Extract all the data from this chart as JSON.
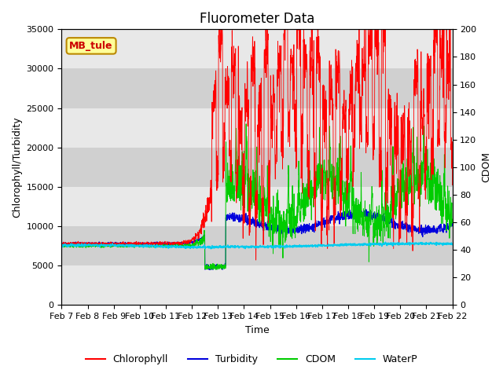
{
  "title": "Fluorometer Data",
  "xlabel": "Time",
  "ylabel_left": "Chlorophyll/Turbidity",
  "ylabel_right": "CDOM",
  "station_label": "MB_tule",
  "ylim_left": [
    0,
    35000
  ],
  "ylim_right": [
    0,
    200
  ],
  "yticks_left": [
    0,
    5000,
    10000,
    15000,
    20000,
    25000,
    30000,
    35000
  ],
  "yticks_right": [
    0,
    20,
    40,
    60,
    80,
    100,
    120,
    140,
    160,
    180,
    200
  ],
  "x_tick_labels": [
    "Feb 7",
    "Feb 8",
    "Feb 9",
    "Feb 10",
    "Feb 11",
    "Feb 12",
    "Feb 13",
    "Feb 14",
    "Feb 15",
    "Feb 16",
    "Feb 17",
    "Feb 18",
    "Feb 19",
    "Feb 20",
    "Feb 21",
    "Feb 22"
  ],
  "colors": {
    "chlorophyll": "#ff0000",
    "turbidity": "#0000dd",
    "cdom": "#00cc00",
    "waterp": "#00ccee",
    "station_box_bg": "#ffff99",
    "station_box_edge": "#bb8800",
    "station_text": "#cc0000",
    "plot_bg_light": "#e8e8e8",
    "plot_bg_dark": "#d0d0d0"
  },
  "legend_entries": [
    "Chlorophyll",
    "Turbidity",
    "CDOM",
    "WaterP"
  ],
  "font_size_title": 12,
  "font_size_labels": 9,
  "font_size_ticks": 8,
  "font_size_legend": 9,
  "transition_day": 5.8,
  "n_points": 2000
}
